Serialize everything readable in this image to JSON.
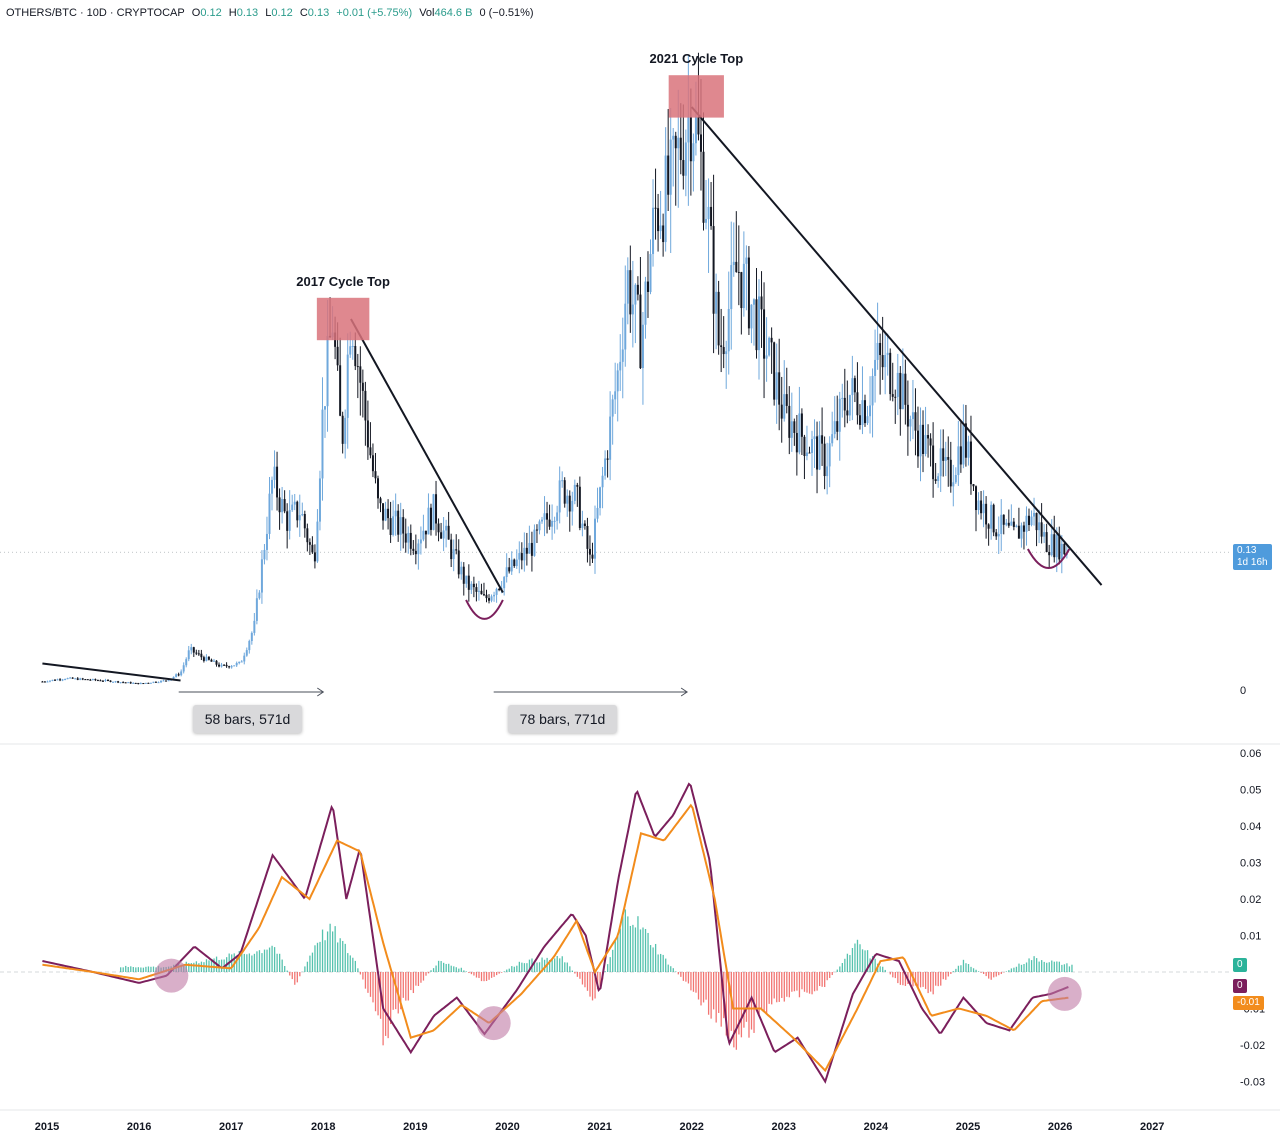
{
  "legend": {
    "symbol": "OTHERS/BTC · 10D · CRYPTOCAP",
    "o_label": "O",
    "o_value": "0.12",
    "h_label": "H",
    "h_value": "0.13",
    "l_label": "L",
    "l_value": "0.12",
    "c_label": "C",
    "c_value": "0.13",
    "change": "+0.01 (+5.75%)",
    "vol_label": "Vol",
    "vol_value": "464.6 B",
    "extra": "0 (−0.51%)"
  },
  "colors": {
    "bull": "#6fa8dc",
    "bear": "#131722",
    "macd": "#7b1f5c",
    "signal": "#f28c1c",
    "hist_pos": "#2bb39a",
    "hist_neg": "#ef5350",
    "cycle_box": "#d9737b",
    "circle": "#c07aa5",
    "price_tag": "#4f9bdc"
  },
  "price_tag": {
    "value": "0.13",
    "countdown": "1d 16h"
  },
  "price_axis": {
    "zero_label": "0"
  },
  "annotations": {
    "top_2017": "2017 Cycle Top",
    "top_2021": "2021 Cycle Top",
    "range_1": "58 bars, 571d",
    "range_2": "78 bars, 771d"
  },
  "osc_tags": {
    "hist": "0",
    "macd": "0",
    "signal": "-0.01"
  },
  "chart_data": [
    {
      "type": "candlestick",
      "title": "OTHERS/BTC · 10D · CRYPTOCAP",
      "x_ticks": [
        "2015",
        "2016",
        "2017",
        "2018",
        "2019",
        "2020",
        "2021",
        "2022",
        "2023",
        "2024",
        "2025",
        "2026",
        "2027"
      ],
      "close_path": [
        {
          "t": 2014.95,
          "v": 0.008
        },
        {
          "t": 2015.2,
          "v": 0.011
        },
        {
          "t": 2015.6,
          "v": 0.009
        },
        {
          "t": 2016.0,
          "v": 0.006
        },
        {
          "t": 2016.3,
          "v": 0.009
        },
        {
          "t": 2016.45,
          "v": 0.016
        },
        {
          "t": 2016.55,
          "v": 0.038
        },
        {
          "t": 2016.7,
          "v": 0.03
        },
        {
          "t": 2016.9,
          "v": 0.022
        },
        {
          "t": 2017.1,
          "v": 0.025
        },
        {
          "t": 2017.25,
          "v": 0.06
        },
        {
          "t": 2017.45,
          "v": 0.2
        },
        {
          "t": 2017.6,
          "v": 0.16
        },
        {
          "t": 2017.75,
          "v": 0.17
        },
        {
          "t": 2017.9,
          "v": 0.12
        },
        {
          "t": 2018.0,
          "v": 0.27
        },
        {
          "t": 2018.1,
          "v": 0.35
        },
        {
          "t": 2018.2,
          "v": 0.23
        },
        {
          "t": 2018.3,
          "v": 0.36
        },
        {
          "t": 2018.45,
          "v": 0.26
        },
        {
          "t": 2018.6,
          "v": 0.17
        },
        {
          "t": 2018.8,
          "v": 0.155
        },
        {
          "t": 2019.0,
          "v": 0.14
        },
        {
          "t": 2019.2,
          "v": 0.17
        },
        {
          "t": 2019.35,
          "v": 0.14
        },
        {
          "t": 2019.55,
          "v": 0.1
        },
        {
          "t": 2019.75,
          "v": 0.085
        },
        {
          "t": 2020.0,
          "v": 0.11
        },
        {
          "t": 2020.3,
          "v": 0.14
        },
        {
          "t": 2020.6,
          "v": 0.19
        },
        {
          "t": 2020.75,
          "v": 0.18
        },
        {
          "t": 2020.9,
          "v": 0.12
        },
        {
          "t": 2021.0,
          "v": 0.18
        },
        {
          "t": 2021.2,
          "v": 0.3
        },
        {
          "t": 2021.3,
          "v": 0.39
        },
        {
          "t": 2021.45,
          "v": 0.33
        },
        {
          "t": 2021.6,
          "v": 0.45
        },
        {
          "t": 2021.75,
          "v": 0.47
        },
        {
          "t": 2021.9,
          "v": 0.52
        },
        {
          "t": 2022.0,
          "v": 0.55
        },
        {
          "t": 2022.15,
          "v": 0.47
        },
        {
          "t": 2022.3,
          "v": 0.32
        },
        {
          "t": 2022.5,
          "v": 0.4
        },
        {
          "t": 2022.7,
          "v": 0.35
        },
        {
          "t": 2022.85,
          "v": 0.31
        },
        {
          "t": 2023.0,
          "v": 0.26
        },
        {
          "t": 2023.2,
          "v": 0.24
        },
        {
          "t": 2023.45,
          "v": 0.215
        },
        {
          "t": 2023.7,
          "v": 0.28
        },
        {
          "t": 2023.9,
          "v": 0.27
        },
        {
          "t": 2024.0,
          "v": 0.31
        },
        {
          "t": 2024.2,
          "v": 0.3
        },
        {
          "t": 2024.4,
          "v": 0.25
        },
        {
          "t": 2024.6,
          "v": 0.22
        },
        {
          "t": 2024.8,
          "v": 0.2
        },
        {
          "t": 2024.95,
          "v": 0.24
        },
        {
          "t": 2025.1,
          "v": 0.18
        },
        {
          "t": 2025.3,
          "v": 0.155
        },
        {
          "t": 2025.5,
          "v": 0.145
        },
        {
          "t": 2025.7,
          "v": 0.165
        },
        {
          "t": 2025.85,
          "v": 0.14
        },
        {
          "t": 2026.0,
          "v": 0.135
        },
        {
          "t": 2026.1,
          "v": 0.13
        }
      ],
      "trendlines": [
        {
          "from": {
            "t": 2014.95,
            "v": 0.025
          },
          "to": {
            "t": 2016.45,
            "v": 0.009
          }
        },
        {
          "from": {
            "t": 2018.3,
            "v": 0.35
          },
          "to": {
            "t": 2019.95,
            "v": 0.092
          }
        },
        {
          "from": {
            "t": 2022.0,
            "v": 0.55
          },
          "to": {
            "t": 2026.45,
            "v": 0.099
          }
        }
      ],
      "cycle_tops": [
        {
          "label": "2017 Cycle Top",
          "t_from": 2017.93,
          "t_to": 2018.5,
          "v_from": 0.33,
          "v_to": 0.37
        },
        {
          "label": "2021 Cycle Top",
          "t_from": 2021.75,
          "t_to": 2022.35,
          "v_from": 0.54,
          "v_to": 0.58
        }
      ],
      "date_ranges": [
        {
          "label": "58 bars, 571d",
          "t_from": 2016.43,
          "t_to": 2018.0
        },
        {
          "label": "78 bars, 771d",
          "t_from": 2019.85,
          "t_to": 2021.95
        }
      ],
      "last_price": 0.13
    },
    {
      "type": "line",
      "title": "",
      "y_ticks": [
        0.06,
        0.05,
        0.04,
        0.03,
        0.02,
        0.01,
        -0.01,
        -0.02,
        -0.03
      ],
      "ylim": [
        -0.03,
        0.06
      ],
      "series": [
        {
          "values_key": "macd",
          "points": [
            {
              "t": 2014.95,
              "v": 0.003
            },
            {
              "t": 2015.5,
              "v": 0.0
            },
            {
              "t": 2016.0,
              "v": -0.003
            },
            {
              "t": 2016.3,
              "v": -0.001
            },
            {
              "t": 2016.6,
              "v": 0.007
            },
            {
              "t": 2016.9,
              "v": 0.001
            },
            {
              "t": 2017.1,
              "v": 0.005
            },
            {
              "t": 2017.45,
              "v": 0.032
            },
            {
              "t": 2017.8,
              "v": 0.02
            },
            {
              "t": 2018.1,
              "v": 0.046
            },
            {
              "t": 2018.25,
              "v": 0.02
            },
            {
              "t": 2018.4,
              "v": 0.034
            },
            {
              "t": 2018.65,
              "v": -0.01
            },
            {
              "t": 2018.95,
              "v": -0.022
            },
            {
              "t": 2019.2,
              "v": -0.012
            },
            {
              "t": 2019.45,
              "v": -0.007
            },
            {
              "t": 2019.75,
              "v": -0.017
            },
            {
              "t": 2020.1,
              "v": -0.005
            },
            {
              "t": 2020.4,
              "v": 0.007
            },
            {
              "t": 2020.7,
              "v": 0.016
            },
            {
              "t": 2020.85,
              "v": 0.01
            },
            {
              "t": 2021.0,
              "v": -0.006
            },
            {
              "t": 2021.2,
              "v": 0.025
            },
            {
              "t": 2021.4,
              "v": 0.05
            },
            {
              "t": 2021.6,
              "v": 0.037
            },
            {
              "t": 2021.8,
              "v": 0.043
            },
            {
              "t": 2021.98,
              "v": 0.052
            },
            {
              "t": 2022.2,
              "v": 0.03
            },
            {
              "t": 2022.4,
              "v": -0.02
            },
            {
              "t": 2022.65,
              "v": -0.007
            },
            {
              "t": 2022.9,
              "v": -0.022
            },
            {
              "t": 2023.15,
              "v": -0.018
            },
            {
              "t": 2023.45,
              "v": -0.03
            },
            {
              "t": 2023.75,
              "v": -0.006
            },
            {
              "t": 2024.0,
              "v": 0.005
            },
            {
              "t": 2024.25,
              "v": 0.003
            },
            {
              "t": 2024.5,
              "v": -0.01
            },
            {
              "t": 2024.7,
              "v": -0.017
            },
            {
              "t": 2024.95,
              "v": -0.007
            },
            {
              "t": 2025.2,
              "v": -0.014
            },
            {
              "t": 2025.45,
              "v": -0.016
            },
            {
              "t": 2025.7,
              "v": -0.007
            },
            {
              "t": 2025.9,
              "v": -0.006
            },
            {
              "t": 2026.1,
              "v": -0.004
            }
          ]
        },
        {
          "values_key": "signal",
          "points": [
            {
              "t": 2014.95,
              "v": 0.002
            },
            {
              "t": 2015.5,
              "v": 0.0
            },
            {
              "t": 2016.0,
              "v": -0.002
            },
            {
              "t": 2016.5,
              "v": 0.002
            },
            {
              "t": 2017.0,
              "v": 0.001
            },
            {
              "t": 2017.3,
              "v": 0.012
            },
            {
              "t": 2017.55,
              "v": 0.026
            },
            {
              "t": 2017.85,
              "v": 0.02
            },
            {
              "t": 2018.15,
              "v": 0.036
            },
            {
              "t": 2018.4,
              "v": 0.033
            },
            {
              "t": 2018.65,
              "v": 0.008
            },
            {
              "t": 2018.95,
              "v": -0.018
            },
            {
              "t": 2019.2,
              "v": -0.016
            },
            {
              "t": 2019.5,
              "v": -0.009
            },
            {
              "t": 2019.8,
              "v": -0.014
            },
            {
              "t": 2020.15,
              "v": -0.006
            },
            {
              "t": 2020.5,
              "v": 0.004
            },
            {
              "t": 2020.75,
              "v": 0.014
            },
            {
              "t": 2020.95,
              "v": 0.0
            },
            {
              "t": 2021.2,
              "v": 0.01
            },
            {
              "t": 2021.45,
              "v": 0.038
            },
            {
              "t": 2021.7,
              "v": 0.036
            },
            {
              "t": 2022.0,
              "v": 0.046
            },
            {
              "t": 2022.25,
              "v": 0.02
            },
            {
              "t": 2022.45,
              "v": -0.01
            },
            {
              "t": 2022.75,
              "v": -0.01
            },
            {
              "t": 2023.1,
              "v": -0.018
            },
            {
              "t": 2023.45,
              "v": -0.027
            },
            {
              "t": 2023.8,
              "v": -0.01
            },
            {
              "t": 2024.05,
              "v": 0.003
            },
            {
              "t": 2024.3,
              "v": 0.004
            },
            {
              "t": 2024.6,
              "v": -0.012
            },
            {
              "t": 2024.9,
              "v": -0.01
            },
            {
              "t": 2025.2,
              "v": -0.012
            },
            {
              "t": 2025.5,
              "v": -0.016
            },
            {
              "t": 2025.8,
              "v": -0.008
            },
            {
              "t": 2026.1,
              "v": -0.007
            }
          ]
        }
      ],
      "histogram": [
        {
          "t": 2016.3,
          "v": 0.0015
        },
        {
          "t": 2017.3,
          "v": 0.006
        },
        {
          "t": 2017.45,
          "v": 0.008
        },
        {
          "t": 2017.7,
          "v": -0.004
        },
        {
          "t": 2017.95,
          "v": 0.01
        },
        {
          "t": 2018.1,
          "v": 0.012
        },
        {
          "t": 2018.35,
          "v": 0.003
        },
        {
          "t": 2018.65,
          "v": -0.018
        },
        {
          "t": 2018.9,
          "v": -0.008
        },
        {
          "t": 2019.25,
          "v": 0.003
        },
        {
          "t": 2019.5,
          "v": 0.001
        },
        {
          "t": 2019.75,
          "v": -0.003
        },
        {
          "t": 2020.15,
          "v": 0.003
        },
        {
          "t": 2020.6,
          "v": 0.004
        },
        {
          "t": 2020.95,
          "v": -0.008
        },
        {
          "t": 2021.3,
          "v": 0.018
        },
        {
          "t": 2021.7,
          "v": 0.004
        },
        {
          "t": 2022.3,
          "v": -0.014
        },
        {
          "t": 2022.45,
          "v": -0.022
        },
        {
          "t": 2022.9,
          "v": -0.008
        },
        {
          "t": 2023.4,
          "v": -0.005
        },
        {
          "t": 2023.8,
          "v": 0.008
        },
        {
          "t": 2024.25,
          "v": -0.003
        },
        {
          "t": 2024.6,
          "v": -0.006
        },
        {
          "t": 2024.95,
          "v": 0.003
        },
        {
          "t": 2025.25,
          "v": -0.002
        },
        {
          "t": 2025.7,
          "v": 0.004
        },
        {
          "t": 2026.1,
          "v": 0.002
        }
      ],
      "highlight_circles": [
        {
          "t": 2016.35,
          "v": -0.001
        },
        {
          "t": 2019.85,
          "v": -0.014
        },
        {
          "t": 2026.05,
          "v": -0.006
        }
      ]
    }
  ]
}
